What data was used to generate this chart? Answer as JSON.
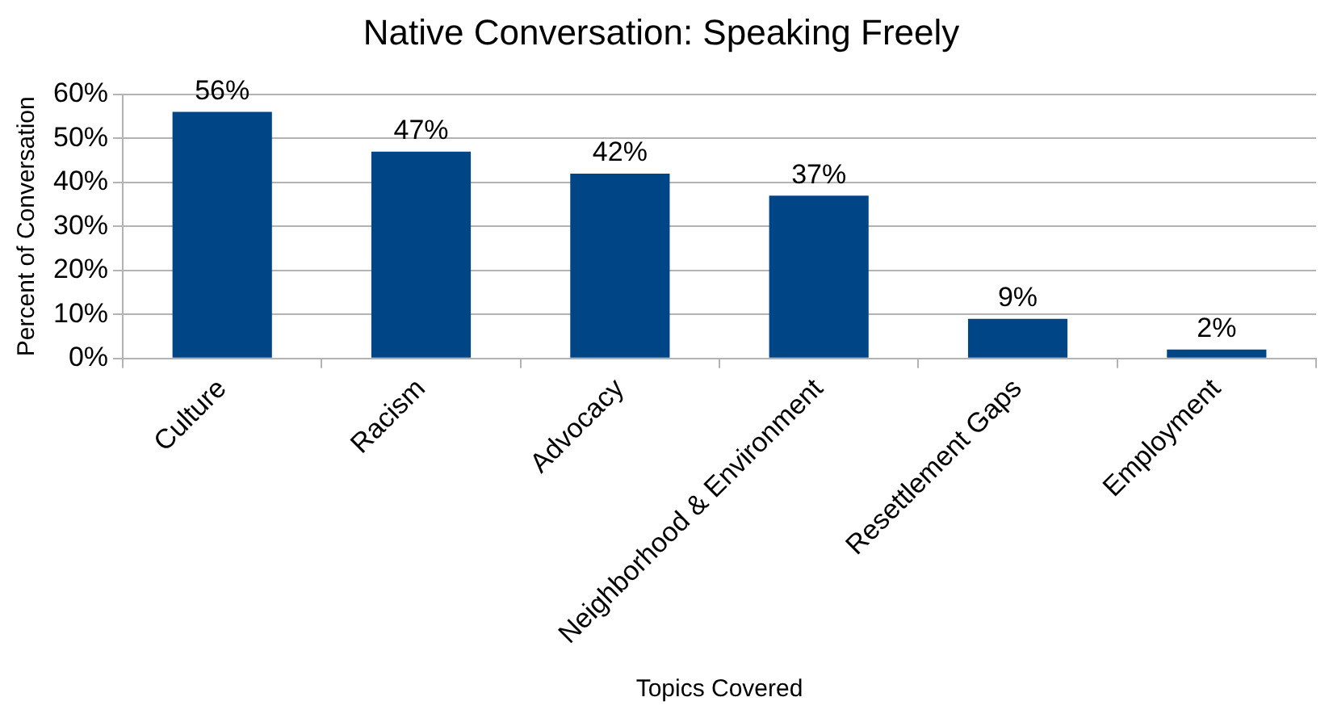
{
  "chart_data": {
    "type": "bar",
    "title": "Native Conversation: Speaking Freely",
    "xlabel": "Topics Covered",
    "ylabel": "Percent of Conversation",
    "categories": [
      "Culture",
      "Racism",
      "Advocacy",
      "Neighborhood & Environment",
      "Resettlement Gaps",
      "Employment"
    ],
    "values": [
      56,
      47,
      42,
      37,
      9,
      2
    ],
    "value_labels": [
      "56%",
      "47%",
      "42%",
      "37%",
      "9%",
      "2%"
    ],
    "color": "#004586",
    "ylim": [
      0,
      60
    ],
    "yticks": [
      {
        "value": 0,
        "label": "0%"
      },
      {
        "value": 10,
        "label": "10%"
      },
      {
        "value": 20,
        "label": "20%"
      },
      {
        "value": 30,
        "label": "30%"
      },
      {
        "value": 40,
        "label": "40%"
      },
      {
        "value": 50,
        "label": "50%"
      },
      {
        "value": 60,
        "label": "60%"
      }
    ],
    "grid": "y",
    "legend": false
  }
}
